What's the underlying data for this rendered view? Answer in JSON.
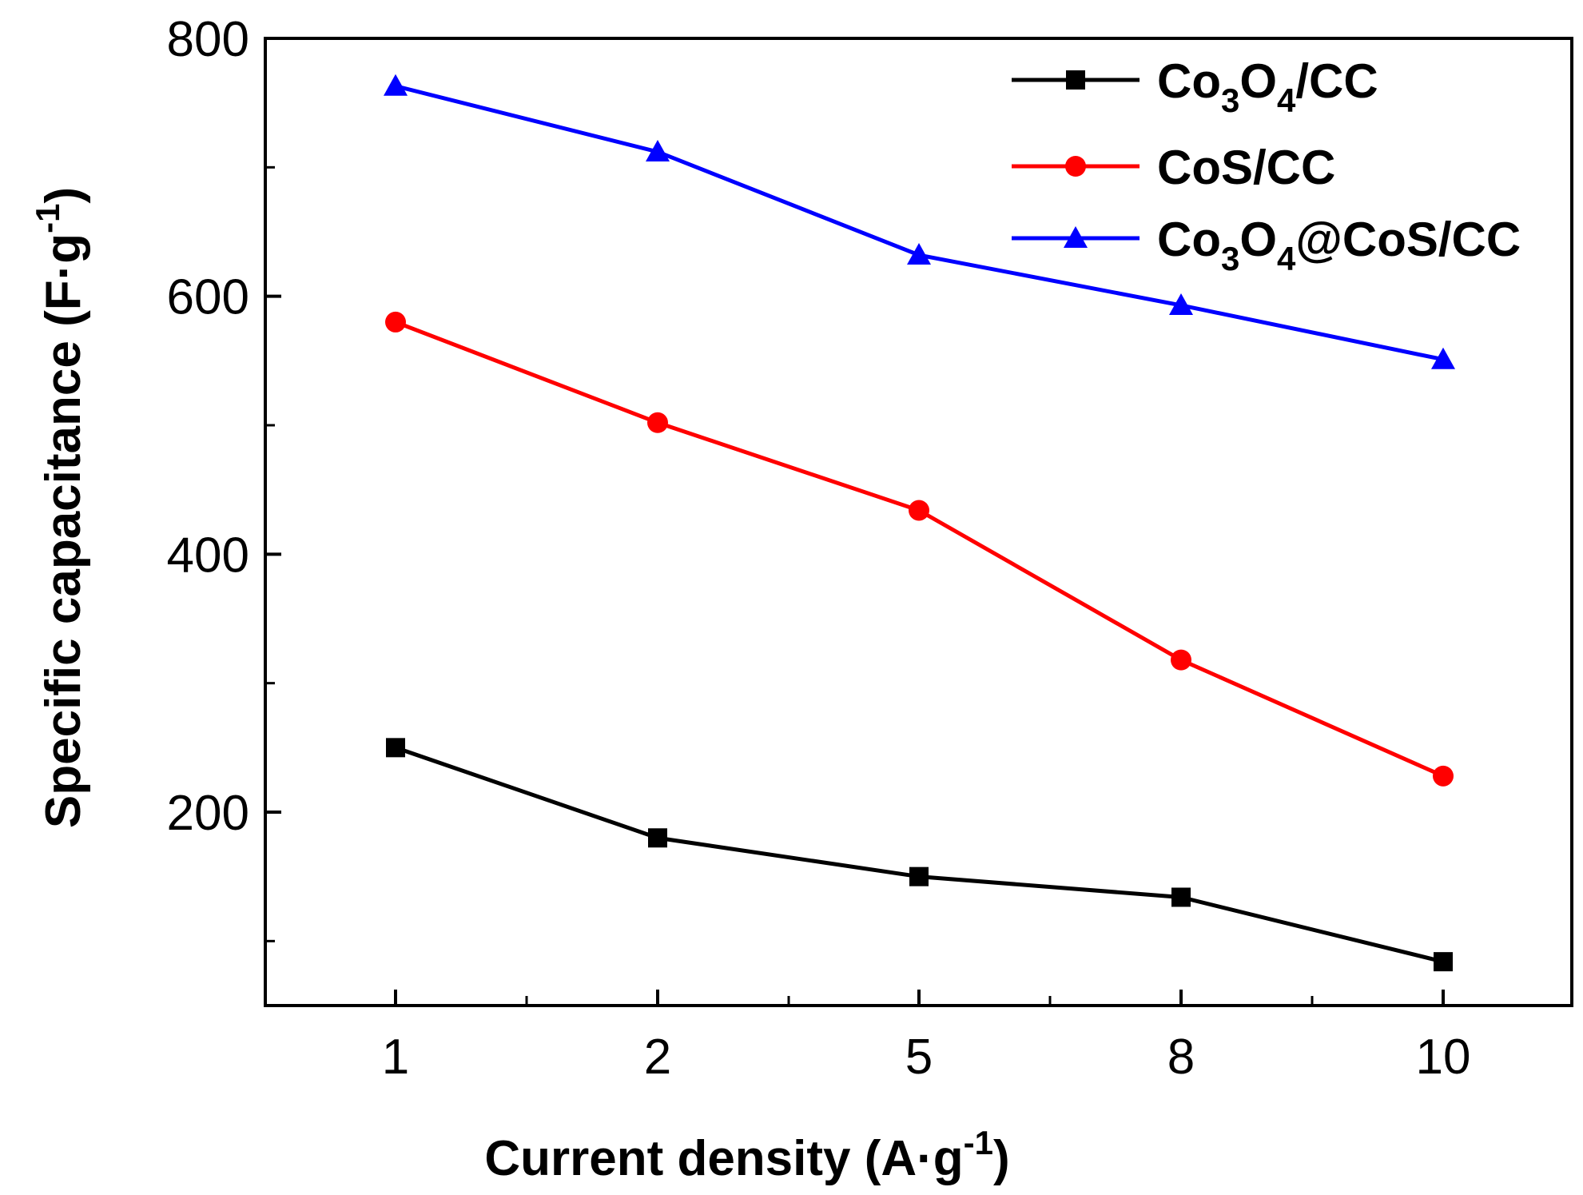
{
  "chart_data": {
    "type": "line",
    "title": "",
    "xlabel": {
      "main": "Current density (A·g",
      "sup": "-1",
      "close": ")"
    },
    "ylabel": {
      "main": "Specific capacitance (F·g",
      "sup": "-1",
      "close": ")"
    },
    "categories": [
      "1",
      "2",
      "5",
      "8",
      "10"
    ],
    "ylim": [
      50,
      800
    ],
    "yticks": [
      200,
      400,
      600,
      800
    ],
    "yminor": [
      100,
      300,
      500,
      700
    ],
    "legend_position": "top-right",
    "series": [
      {
        "name": "Co3O4/CC",
        "label_parts": [
          {
            "t": "Co",
            "sub": false
          },
          {
            "t": "3",
            "sub": true
          },
          {
            "t": "O",
            "sub": false
          },
          {
            "t": "4",
            "sub": true
          },
          {
            "t": "/CC",
            "sub": false
          }
        ],
        "color": "#000000",
        "marker": "square",
        "values": [
          250,
          180,
          150,
          134,
          84
        ]
      },
      {
        "name": "CoS/CC",
        "label_parts": [
          {
            "t": "CoS/CC",
            "sub": false
          }
        ],
        "color": "#ff0000",
        "marker": "circle",
        "values": [
          580,
          502,
          434,
          318,
          228
        ]
      },
      {
        "name": "Co3O4@CoS/CC",
        "label_parts": [
          {
            "t": "Co",
            "sub": false
          },
          {
            "t": "3",
            "sub": true
          },
          {
            "t": "O",
            "sub": false
          },
          {
            "t": "4",
            "sub": true
          },
          {
            "t": "@CoS/CC",
            "sub": false
          }
        ],
        "color": "#0000ff",
        "marker": "triangle",
        "values": [
          763,
          712,
          632,
          593,
          551
        ]
      }
    ]
  }
}
